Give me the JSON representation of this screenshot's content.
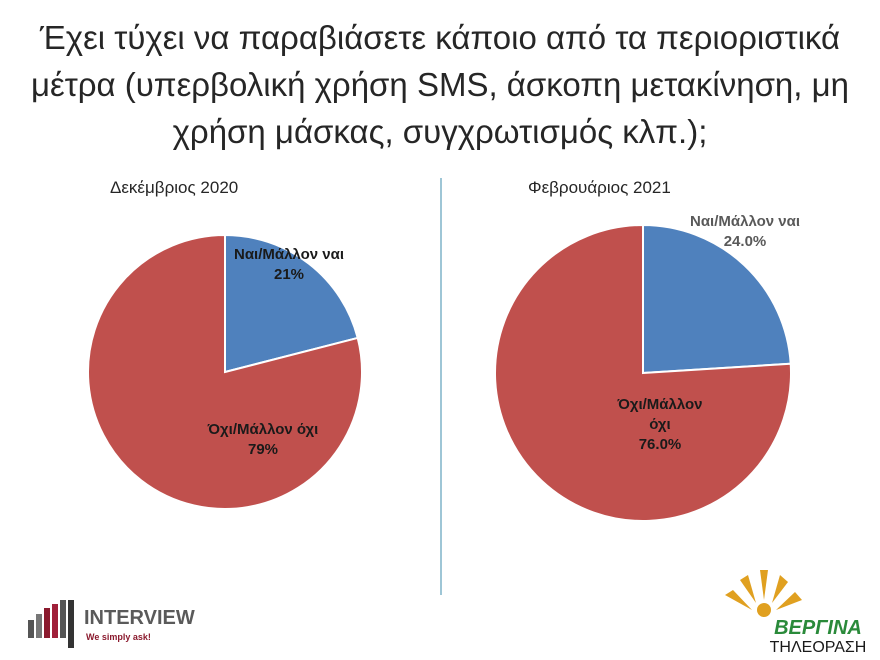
{
  "title": "Έχει τύχει να παραβιάσετε κάποιο από τα περιοριστικά μέτρα (υπερβολική χρήση SMS, άσκοπη μετακίνηση, μη χρήση μάσκας, συγχρωτισμός κλπ.);",
  "chart_data": [
    {
      "type": "pie",
      "title": "Δεκέμβριος 2020",
      "categories": [
        "Ναι/Μάλλον ναι",
        "Όχι/Μάλλον όχι"
      ],
      "values": [
        21,
        79
      ],
      "value_labels": [
        "21%",
        "79%"
      ],
      "colors": [
        "#4f81bd",
        "#c0504d"
      ]
    },
    {
      "type": "pie",
      "title": "Φεβρουάριος 2021",
      "categories": [
        "Ναι/Μάλλον ναι",
        "Όχι/Μάλλον όχι"
      ],
      "values": [
        24.0,
        76.0
      ],
      "value_labels": [
        "24.0%",
        "76.0%"
      ],
      "colors": [
        "#4f81bd",
        "#c0504d"
      ]
    }
  ],
  "logos": {
    "interview": "INTERVIEW",
    "interview_tagline": "We simply ask!",
    "vergina": "ΒΕΡΓΙΝΑ",
    "vergina_sub": "ΤΗΛΕΟΡΑΣΗ"
  }
}
